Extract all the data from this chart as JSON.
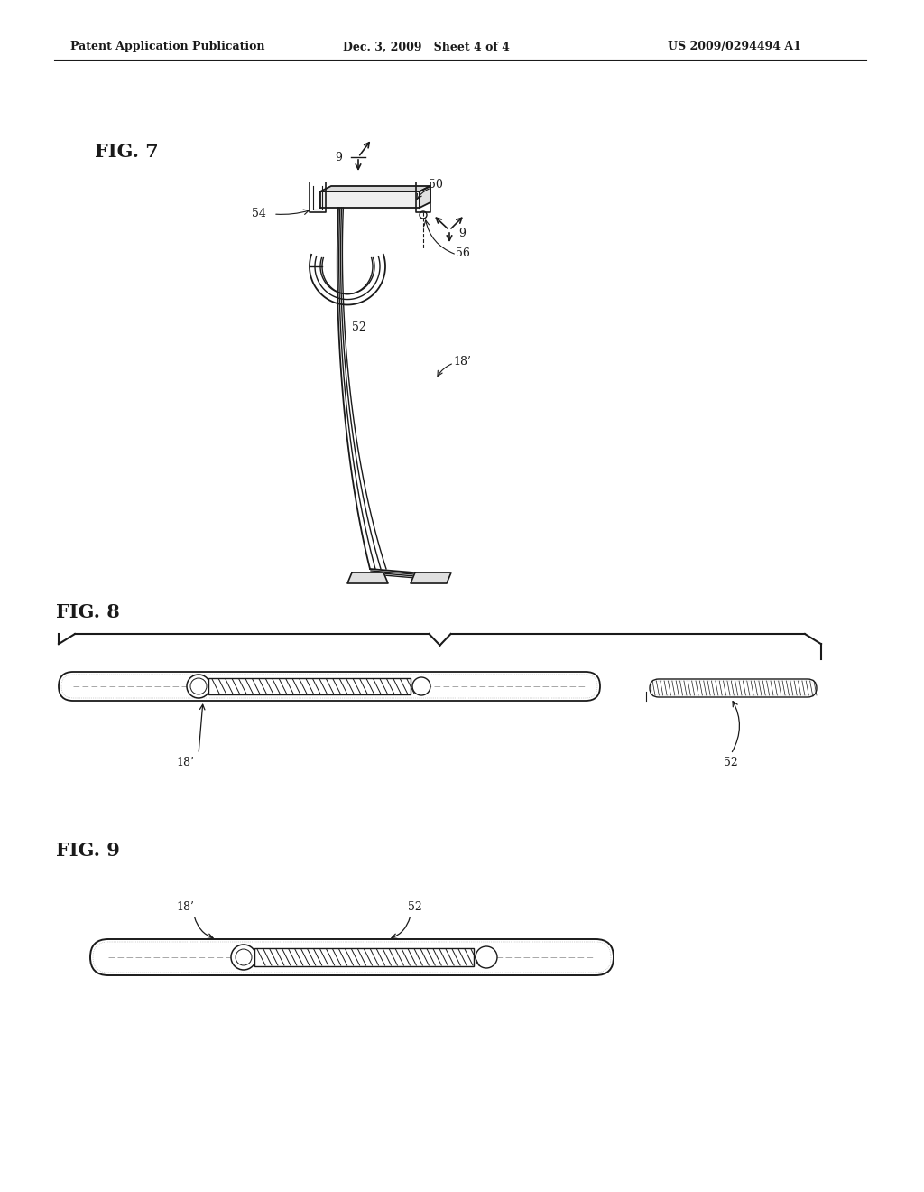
{
  "bg_color": "#ffffff",
  "line_color": "#1a1a1a",
  "header_left": "Patent Application Publication",
  "header_center": "Dec. 3, 2009   Sheet 4 of 4",
  "header_right": "US 2009/0294494 A1",
  "fig7_label": "FIG. 7",
  "fig8_label": "FIG. 8",
  "fig9_label": "FIG. 9"
}
